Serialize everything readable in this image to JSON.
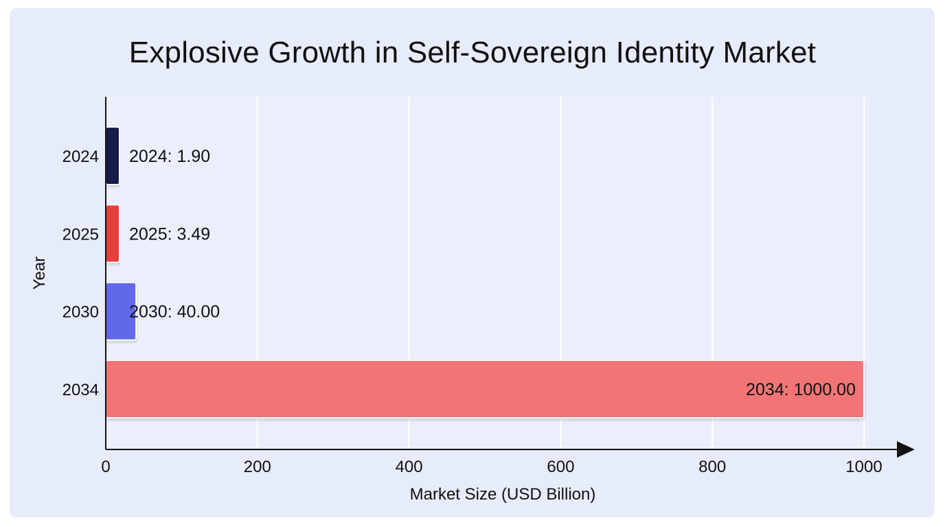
{
  "chart_data": {
    "type": "bar",
    "orientation": "horizontal",
    "title": "Explosive Growth in Self-Sovereign Identity Market",
    "xlabel": "Market Size (USD Billion)",
    "ylabel": "Year",
    "categories": [
      "2024",
      "2025",
      "2030",
      "2034"
    ],
    "values": [
      1.9,
      3.49,
      40.0,
      1000.0
    ],
    "data_labels": [
      "2024: 1.90",
      "2025: 3.49",
      "2030: 40.00",
      "2034: 1000.00"
    ],
    "bar_colors": [
      "#141a4a",
      "#e83c3c",
      "#6268ea",
      "#f17577"
    ],
    "xlim": [
      0,
      1000
    ],
    "xticks": [
      "0",
      "200",
      "400",
      "600",
      "800",
      "1000"
    ],
    "xtick_values": [
      0,
      200,
      400,
      600,
      800,
      1000
    ],
    "grid": true
  }
}
